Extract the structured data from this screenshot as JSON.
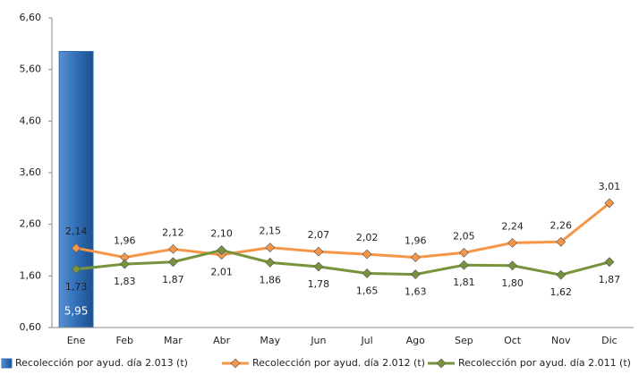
{
  "chart_data": {
    "type": "combo",
    "categories": [
      "Ene",
      "Feb",
      "Mar",
      "Abr",
      "May",
      "Jun",
      "Jul",
      "Ago",
      "Sep",
      "Oct",
      "Nov",
      "Dic"
    ],
    "ylim": [
      0.6,
      6.6
    ],
    "yticks": [
      {
        "value": 0.6,
        "label": "0,60"
      },
      {
        "value": 1.6,
        "label": "1,60"
      },
      {
        "value": 2.6,
        "label": "2,60"
      },
      {
        "value": 3.6,
        "label": "3,60"
      },
      {
        "value": 4.6,
        "label": "4,60"
      },
      {
        "value": 5.6,
        "label": "5,60"
      },
      {
        "value": 6.6,
        "label": "6,60"
      }
    ],
    "legend": "bottom",
    "series": [
      {
        "name": "Recolección por ayud. día 2.013 (t)",
        "type": "bar",
        "color": "#2f6fb8",
        "values": [
          5.95,
          null,
          null,
          null,
          null,
          null,
          null,
          null,
          null,
          null,
          null,
          null
        ],
        "value_labels": [
          "5,95",
          null,
          null,
          null,
          null,
          null,
          null,
          null,
          null,
          null,
          null,
          null
        ]
      },
      {
        "name": "Recolección por ayud. día 2.012 (t)",
        "type": "line",
        "color": "#f79646",
        "values": [
          2.14,
          1.96,
          2.12,
          2.01,
          2.15,
          2.07,
          2.02,
          1.96,
          2.05,
          2.24,
          2.26,
          3.01
        ],
        "value_labels": [
          "2,14",
          "1,96",
          "2,12",
          "2,01",
          "2,15",
          "2,07",
          "2,02",
          "1,96",
          "2,05",
          "2,24",
          "2,26",
          "3,01"
        ]
      },
      {
        "name": "Recolección por ayud. día 2.011 (t)",
        "type": "line",
        "color": "#77933c",
        "values": [
          1.73,
          1.83,
          1.87,
          2.1,
          1.86,
          1.78,
          1.65,
          1.63,
          1.81,
          1.8,
          1.62,
          1.87
        ],
        "value_labels": [
          "1,73",
          "1,83",
          "1,87",
          "2,10",
          "1,86",
          "1,78",
          "1,65",
          "1,63",
          "1,81",
          "1,80",
          "1,62",
          "1,87"
        ]
      }
    ]
  }
}
